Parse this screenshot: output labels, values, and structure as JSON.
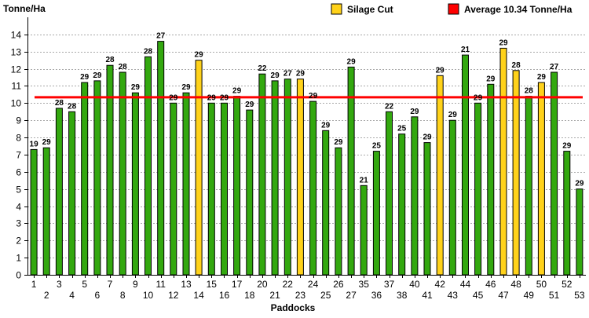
{
  "colors": {
    "green": "#33a80f",
    "yellow": "#ffd21a",
    "red": "#ff0000",
    "grid": "#a9a9a9",
    "axis": "#000000"
  },
  "chart_data": {
    "type": "bar",
    "title": "",
    "ylabel": "Tonne/Ha",
    "xlabel": "Paddocks",
    "ylim": [
      0,
      15
    ],
    "yticks": [
      0,
      1,
      2,
      3,
      4,
      5,
      6,
      7,
      8,
      9,
      10,
      11,
      12,
      13,
      14
    ],
    "grid": true,
    "legend": [
      {
        "label": "Silage Cut",
        "color": "#ffd21a",
        "kind": "box"
      },
      {
        "label": "Average 10.34 Tonne/Ha",
        "color": "#ff0000",
        "kind": "box"
      }
    ],
    "average": 10.34,
    "categories": [
      "1",
      "2",
      "3",
      "4",
      "5",
      "6",
      "7",
      "8",
      "9",
      "10",
      "11",
      "12",
      "13",
      "14",
      "15",
      "16",
      "17",
      "18",
      "20",
      "21",
      "22",
      "23",
      "24",
      "25",
      "26",
      "27",
      "35",
      "36",
      "37",
      "38",
      "40",
      "41",
      "42",
      "43",
      "44",
      "45",
      "46",
      "47",
      "48",
      "49",
      "50",
      "51",
      "52",
      "53"
    ],
    "values": [
      7.3,
      7.4,
      9.7,
      9.5,
      11.2,
      11.3,
      12.2,
      11.8,
      10.6,
      12.7,
      13.6,
      10.0,
      10.6,
      12.5,
      10.0,
      10.0,
      10.4,
      9.6,
      11.7,
      11.3,
      11.4,
      11.4,
      10.1,
      8.4,
      7.4,
      12.1,
      5.2,
      7.2,
      9.5,
      8.2,
      9.2,
      7.7,
      11.6,
      9.0,
      12.8,
      10.0,
      11.1,
      13.2,
      11.9,
      10.4,
      11.2,
      11.8,
      7.2,
      5.0
    ],
    "labels": [
      "19",
      "29",
      "28",
      "28",
      "29",
      "29",
      "28",
      "28",
      "29",
      "28",
      "27",
      "29",
      "29",
      "29",
      "29",
      "29",
      "29",
      "29",
      "22",
      "29",
      "27",
      "29",
      "29",
      "29",
      "29",
      "29",
      "21",
      "25",
      "22",
      "25",
      "29",
      "29",
      "29",
      "29",
      "21",
      "29",
      "29",
      "29",
      "28",
      "28",
      "29",
      "27",
      "29",
      "29"
    ],
    "silage": [
      false,
      false,
      false,
      false,
      false,
      false,
      false,
      false,
      false,
      false,
      false,
      false,
      false,
      true,
      false,
      false,
      false,
      false,
      false,
      false,
      false,
      true,
      false,
      false,
      false,
      false,
      false,
      false,
      false,
      false,
      false,
      false,
      true,
      false,
      false,
      false,
      false,
      true,
      true,
      false,
      true,
      false,
      false,
      false
    ]
  }
}
